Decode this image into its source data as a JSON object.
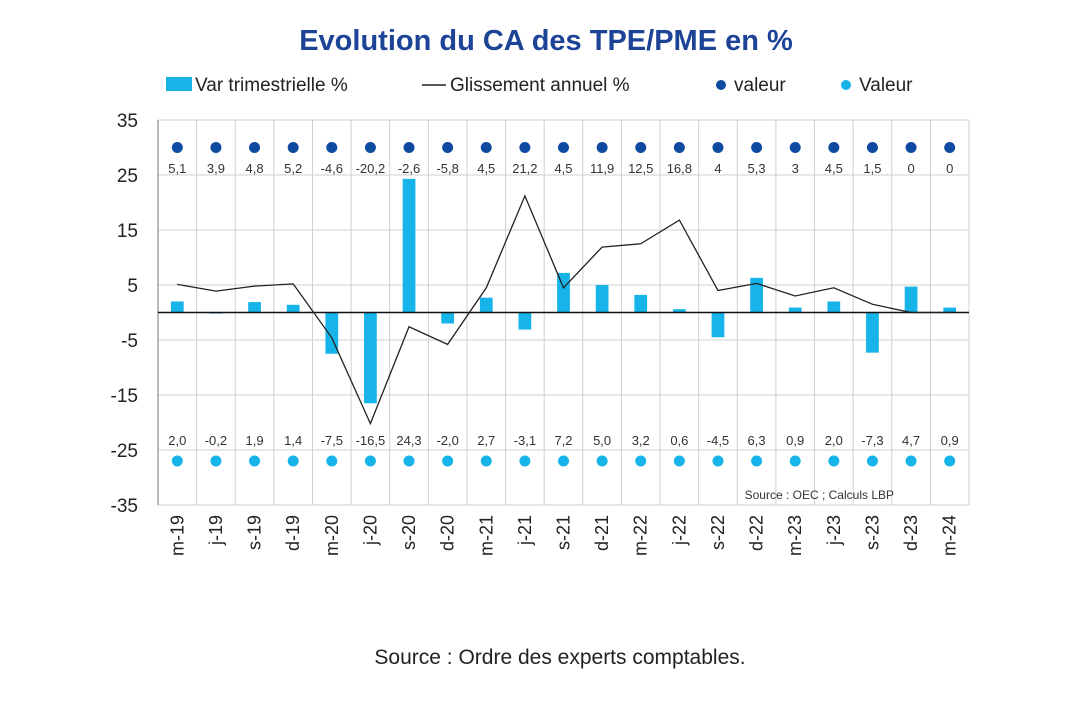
{
  "chart_data": {
    "type": "bar",
    "title": "Evolution du CA des TPE/PME en %",
    "categories": [
      "m-19",
      "j-19",
      "s-19",
      "d-19",
      "m-20",
      "j-20",
      "s-20",
      "d-20",
      "m-21",
      "j-21",
      "s-21",
      "d-21",
      "m-22",
      "j-22",
      "s-22",
      "d-22",
      "m-23",
      "j-23",
      "s-23",
      "d-23",
      "m-24"
    ],
    "series": [
      {
        "name": "Var trimestrielle %",
        "type": "bar",
        "color": "#17b4ea",
        "values": [
          2.0,
          -0.2,
          1.9,
          1.4,
          -7.5,
          -16.5,
          24.3,
          -2.0,
          2.7,
          -3.1,
          7.2,
          5.0,
          3.2,
          0.6,
          -4.5,
          6.3,
          0.9,
          2.0,
          -7.3,
          4.7,
          0.9
        ],
        "labels": [
          "2,0",
          "-0,2",
          "1,9",
          "1,4",
          "-7,5",
          "-16,5",
          "24,3",
          "-2,0",
          "2,7",
          "-3,1",
          "7,2",
          "5,0",
          "3,2",
          "0,6",
          "-4,5",
          "6,3",
          "0,9",
          "2,0",
          "-7,3",
          "4,7",
          "0,9"
        ]
      },
      {
        "name": "Glissement annuel %",
        "type": "line",
        "color": "#222222",
        "values": [
          5.1,
          3.9,
          4.8,
          5.2,
          -4.6,
          -20.2,
          -2.6,
          -5.8,
          4.5,
          21.2,
          4.5,
          11.9,
          12.5,
          16.8,
          4,
          5.3,
          3,
          4.5,
          1.5,
          0,
          0
        ],
        "labels": [
          "5,1",
          "3,9",
          "4,8",
          "5,2",
          "-4,6",
          "-20,2",
          "-2,6",
          "-5,8",
          "4,5",
          "21,2",
          "4,5",
          "11,9",
          "12,5",
          "16,8",
          "4",
          "5,3",
          "3",
          "4,5",
          "1,5",
          "0",
          "0"
        ]
      },
      {
        "name": "valeur",
        "type": "marker",
        "color": "#0f4aa1",
        "constant": 30
      },
      {
        "name": "Valeur",
        "type": "marker",
        "color": "#17b4ea",
        "constant": -27
      }
    ],
    "ylim": [
      -35,
      35
    ],
    "yticks": [
      35,
      25,
      15,
      5,
      -5,
      -15,
      -25,
      -35
    ],
    "grid": true,
    "legend_position": "top",
    "annotation": "Source : OEC ; Calculs LBP"
  },
  "footer": {
    "source": "Source : Ordre des experts comptables."
  }
}
